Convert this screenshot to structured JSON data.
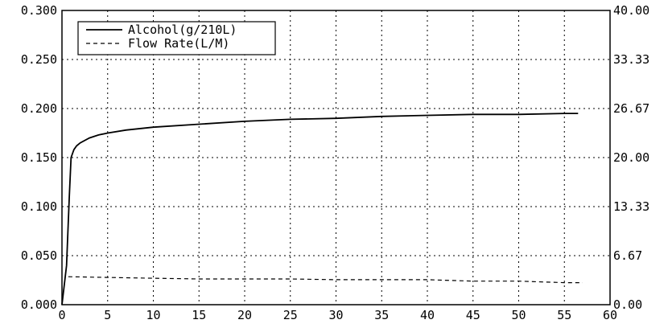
{
  "chart_data": {
    "type": "line",
    "title": "",
    "xlabel": "",
    "ylabel": "",
    "xlim": [
      0,
      60
    ],
    "ylim_left": [
      0,
      0.3
    ],
    "ylim_right": [
      0,
      40
    ],
    "x_ticks": [
      "0",
      "5",
      "10",
      "15",
      "20",
      "25",
      "30",
      "35",
      "40",
      "45",
      "50",
      "55",
      "60"
    ],
    "y_left_ticks": [
      "0.000",
      "0.050",
      "0.100",
      "0.150",
      "0.200",
      "0.250",
      "0.300"
    ],
    "y_right_ticks": [
      "0.00",
      "6.67",
      "13.33",
      "20.00",
      "26.67",
      "33.33",
      "40.00"
    ],
    "grid": true,
    "legend_position": "top-left",
    "series": [
      {
        "name": "Alcohol(g/210L)",
        "axis": "left",
        "style": "solid",
        "x": [
          0,
          0.5,
          0.8,
          1.0,
          1.3,
          1.6,
          2,
          3,
          4,
          5,
          7,
          10,
          15,
          20,
          25,
          30,
          35,
          40,
          45,
          50,
          55,
          56.5
        ],
        "y": [
          0,
          0.04,
          0.11,
          0.15,
          0.158,
          0.162,
          0.165,
          0.17,
          0.173,
          0.175,
          0.178,
          0.181,
          0.184,
          0.187,
          0.189,
          0.19,
          0.192,
          0.193,
          0.194,
          0.194,
          0.195,
          0.195
        ]
      },
      {
        "name": "Flow Rate(L/M)",
        "axis": "right",
        "style": "dashed",
        "x": [
          0.7,
          5,
          10,
          15,
          20,
          25,
          30,
          35,
          40,
          45,
          50,
          55,
          57
        ],
        "y": [
          3.8,
          3.7,
          3.6,
          3.5,
          3.5,
          3.5,
          3.4,
          3.4,
          3.4,
          3.2,
          3.2,
          3.0,
          3.0
        ]
      }
    ]
  }
}
